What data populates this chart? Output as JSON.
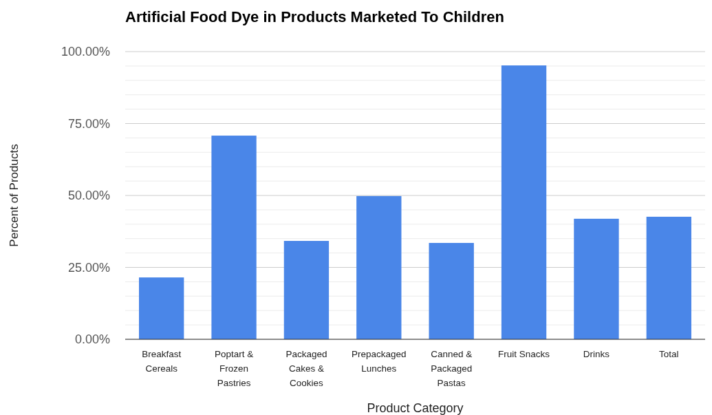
{
  "chart_data": {
    "type": "bar",
    "title": "Artificial Food Dye in Products Marketed To Children",
    "xlabel": "Product Category",
    "ylabel": "Percent of Products",
    "categories": [
      "Breakfast Cereals",
      "Poptart & Frozen Pastries",
      "Packaged Cakes & Cookies",
      "Prepackaged Lunches",
      "Canned & Packaged Pastas",
      "Fruit Snacks",
      "Drinks",
      "Total"
    ],
    "values": [
      21.5,
      70.8,
      34.2,
      49.8,
      33.5,
      95.2,
      41.9,
      42.6
    ],
    "color": "#4a86e8",
    "ylim": [
      0,
      100
    ],
    "yticks": [
      {
        "value": 0,
        "label": "0.00%"
      },
      {
        "value": 5,
        "label": null
      },
      {
        "value": 10,
        "label": null
      },
      {
        "value": 15,
        "label": null
      },
      {
        "value": 20,
        "label": null
      },
      {
        "value": 25,
        "label": "25.00%"
      },
      {
        "value": 30,
        "label": null
      },
      {
        "value": 35,
        "label": null
      },
      {
        "value": 40,
        "label": null
      },
      {
        "value": 45,
        "label": null
      },
      {
        "value": 50,
        "label": "50.00%"
      },
      {
        "value": 55,
        "label": null
      },
      {
        "value": 60,
        "label": null
      },
      {
        "value": 65,
        "label": null
      },
      {
        "value": 70,
        "label": null
      },
      {
        "value": 75,
        "label": "75.00%"
      },
      {
        "value": 80,
        "label": null
      },
      {
        "value": 85,
        "label": null
      },
      {
        "value": 90,
        "label": null
      },
      {
        "value": 95,
        "label": null
      },
      {
        "value": 100,
        "label": "100.00%"
      }
    ],
    "grid": "y"
  }
}
